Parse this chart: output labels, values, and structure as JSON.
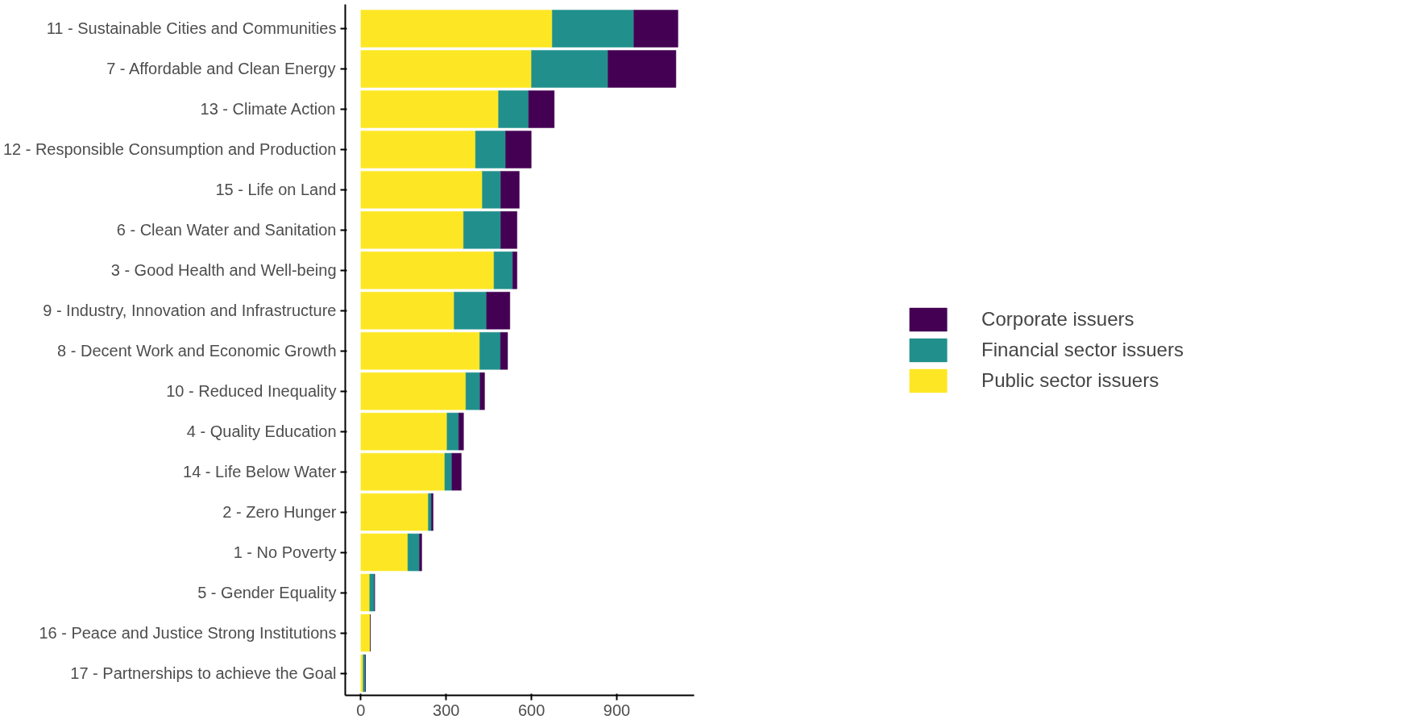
{
  "chart_data": {
    "type": "bar",
    "orientation": "horizontal",
    "stacked": true,
    "legend": "right",
    "grid": false,
    "categories": [
      "11 - Sustainable Cities and Communities",
      "7 - Affordable and Clean Energy",
      "13 - Climate Action",
      "12 - Responsible Consumption and Production",
      "15 - Life on Land",
      "6 - Clean Water and Sanitation",
      "3 - Good Health and Well-being",
      "9 - Industry, Innovation and Infrastructure",
      "8 - Decent Work and Economic Growth",
      "10 - Reduced Inequality",
      "4 - Quality Education",
      "14 - Life Below Water",
      "2 - Zero Hunger",
      "1 - No Poverty",
      "5 - Gender Equality",
      "16 - Peace and Justice Strong Institutions",
      "17 - Partnerships to achieve the Goal"
    ],
    "series": [
      {
        "name": "Public sector issuers",
        "color": "#fde725",
        "values": [
          673,
          600,
          484,
          403,
          427,
          361,
          468,
          328,
          418,
          369,
          303,
          295,
          237,
          165,
          31,
          33,
          8
        ]
      },
      {
        "name": "Financial sector issuers",
        "color": "#21908c",
        "values": [
          287,
          269,
          106,
          106,
          65,
          131,
          66,
          114,
          73,
          50,
          41,
          25,
          11,
          41,
          17,
          0,
          8
        ]
      },
      {
        "name": "Corporate issuers",
        "color": "#440154",
        "values": [
          155,
          239,
          90,
          90,
          65,
          57,
          15,
          82,
          25,
          16,
          17,
          33,
          6,
          8,
          0,
          0,
          0
        ]
      }
    ],
    "xlim": [
      -55,
      1172
    ],
    "xticks": [
      0,
      300,
      600,
      900
    ]
  }
}
